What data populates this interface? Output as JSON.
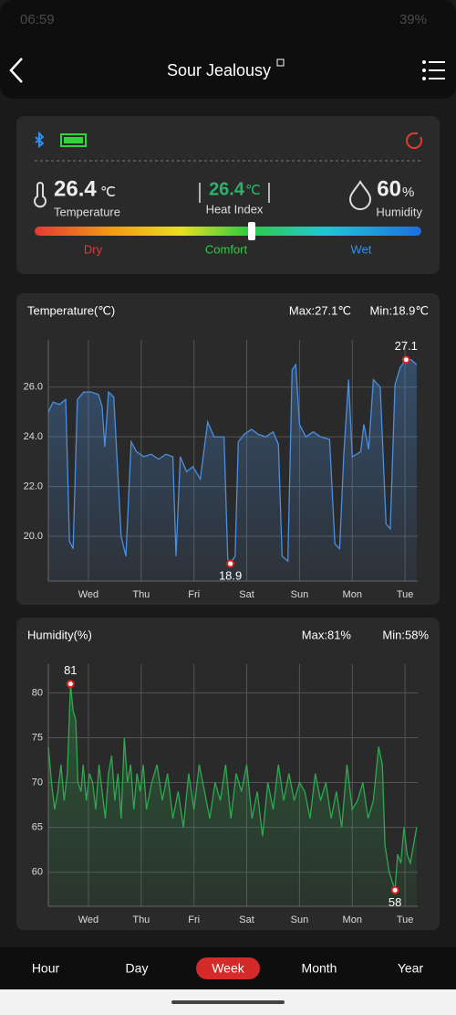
{
  "status_bar": {
    "time": "06:59",
    "battery": "39%"
  },
  "header": {
    "title": "Sour Jealousy"
  },
  "sensor": {
    "temperature": {
      "value": "26.4",
      "unit": "℃",
      "label": "Temperature"
    },
    "heat_index": {
      "value": "26.4",
      "unit": "℃",
      "label": "Heat Index"
    },
    "humidity": {
      "value": "60",
      "unit": "%",
      "label": "Humidity"
    },
    "scale": [
      "Dry",
      "Comfort",
      "Wet"
    ]
  },
  "chart_data": [
    {
      "type": "line",
      "title": "Temperature(℃)",
      "max_label": "Max:27.1℃",
      "min_label": "Min:18.9℃",
      "color": "#4a8fe0",
      "x": [
        0.24,
        0.33,
        0.45,
        0.57,
        0.64,
        0.71,
        0.79,
        0.91,
        1.05,
        1.19,
        1.26,
        1.31,
        1.38,
        1.48,
        1.62,
        1.71,
        1.81,
        1.91,
        2.05,
        2.19,
        2.33,
        2.47,
        2.6,
        2.66,
        2.74,
        2.86,
        2.98,
        3.12,
        3.26,
        3.38,
        3.57,
        3.64,
        3.69,
        3.78,
        3.84,
        3.95,
        4.09,
        4.22,
        4.36,
        4.5,
        4.6,
        4.67,
        4.78,
        4.86,
        4.93,
        5.0,
        5.12,
        5.26,
        5.4,
        5.57,
        5.67,
        5.76,
        5.84,
        5.93,
        6.0,
        6.16,
        6.22,
        6.31,
        6.4,
        6.53,
        6.64,
        6.72,
        6.81,
        6.91,
        7.02,
        7.12,
        7.22
      ],
      "values": [
        25.0,
        25.4,
        25.3,
        25.5,
        19.8,
        19.5,
        25.5,
        25.8,
        25.8,
        25.7,
        25.2,
        23.6,
        25.8,
        25.6,
        20.0,
        19.2,
        23.8,
        23.4,
        23.2,
        23.3,
        23.1,
        23.3,
        23.2,
        19.2,
        23.2,
        22.6,
        22.8,
        22.3,
        24.6,
        24.0,
        24.0,
        19.1,
        18.9,
        19.2,
        23.8,
        24.1,
        24.3,
        24.1,
        24.0,
        24.2,
        23.7,
        19.2,
        19.0,
        26.7,
        26.9,
        24.5,
        24.0,
        24.2,
        24.0,
        23.9,
        19.7,
        19.5,
        23.3,
        26.3,
        23.2,
        23.4,
        24.5,
        23.5,
        26.3,
        26.0,
        20.5,
        20.3,
        26.1,
        26.8,
        27.1,
        27.1,
        26.9
      ],
      "markers": [
        {
          "x": 7.02,
          "y": 27.1
        },
        {
          "x": 3.69,
          "y": 18.9
        }
      ],
      "xlim": [
        0.24,
        7.24
      ],
      "ylim": [
        18.2,
        27.9
      ],
      "xticks": [
        {
          "value": 1,
          "label": "Wed"
        },
        {
          "value": 2,
          "label": "Thu"
        },
        {
          "value": 3,
          "label": "Fri"
        },
        {
          "value": 4,
          "label": "Sat"
        },
        {
          "value": 5,
          "label": "Sun"
        },
        {
          "value": 6,
          "label": "Mon"
        },
        {
          "value": 7,
          "label": "Tue"
        }
      ],
      "yticks": [
        {
          "value": 20,
          "label": "20.0"
        },
        {
          "value": 22,
          "label": "22.0"
        },
        {
          "value": 24,
          "label": "24.0"
        },
        {
          "value": 26,
          "label": "26.0"
        }
      ],
      "grid": true
    },
    {
      "type": "line",
      "title": "Humidity(%)",
      "max_label": "Max:81%",
      "min_label": "Min:58%",
      "color": "#2fa84f",
      "x": [
        0.24,
        0.3,
        0.36,
        0.42,
        0.48,
        0.54,
        0.6,
        0.66,
        0.71,
        0.76,
        0.8,
        0.86,
        0.9,
        0.96,
        1.02,
        1.08,
        1.14,
        1.2,
        1.26,
        1.32,
        1.38,
        1.44,
        1.5,
        1.56,
        1.62,
        1.68,
        1.74,
        1.8,
        1.86,
        1.92,
        1.98,
        2.04,
        2.1,
        2.2,
        2.3,
        2.4,
        2.5,
        2.6,
        2.7,
        2.8,
        2.9,
        3.0,
        3.1,
        3.2,
        3.3,
        3.4,
        3.5,
        3.6,
        3.7,
        3.8,
        3.9,
        4.0,
        4.1,
        4.2,
        4.3,
        4.4,
        4.5,
        4.6,
        4.7,
        4.8,
        4.9,
        5.0,
        5.1,
        5.2,
        5.3,
        5.4,
        5.5,
        5.6,
        5.7,
        5.8,
        5.9,
        6.0,
        6.1,
        6.2,
        6.3,
        6.4,
        6.5,
        6.57,
        6.62,
        6.7,
        6.81,
        6.86,
        6.92,
        6.98,
        7.04,
        7.1,
        7.22
      ],
      "values": [
        74,
        70,
        67,
        69,
        72,
        68,
        71,
        81,
        78,
        77,
        70,
        69,
        72,
        68,
        71,
        70,
        67,
        72,
        69,
        66,
        71,
        73,
        68,
        71,
        66,
        75,
        70,
        72,
        67,
        71,
        69,
        72,
        67,
        70,
        72,
        68,
        71,
        66,
        69,
        65,
        71,
        67,
        72,
        69,
        66,
        70,
        68,
        72,
        66,
        71,
        69,
        72,
        66,
        69,
        64,
        70,
        67,
        72,
        68,
        71,
        68,
        70,
        69,
        66,
        71,
        68,
        70,
        66,
        69,
        65,
        72,
        67,
        68,
        70,
        66,
        68,
        74,
        72,
        63,
        60,
        58,
        62,
        61,
        65,
        62,
        61,
        65
      ],
      "markers": [
        {
          "x": 0.66,
          "y": 81
        },
        {
          "x": 6.81,
          "y": 58
        }
      ],
      "xlim": [
        0.24,
        7.24
      ],
      "ylim": [
        56.2,
        83.2
      ],
      "xticks": [
        {
          "value": 1,
          "label": "Wed"
        },
        {
          "value": 2,
          "label": "Thu"
        },
        {
          "value": 3,
          "label": "Fri"
        },
        {
          "value": 4,
          "label": "Sat"
        },
        {
          "value": 5,
          "label": "Sun"
        },
        {
          "value": 6,
          "label": "Mon"
        },
        {
          "value": 7,
          "label": "Tue"
        }
      ],
      "yticks": [
        60,
        65,
        70,
        75,
        80
      ],
      "grid": true
    }
  ],
  "tabs": {
    "items": [
      "Hour",
      "Day",
      "Week",
      "Month",
      "Year"
    ],
    "active": 2
  }
}
